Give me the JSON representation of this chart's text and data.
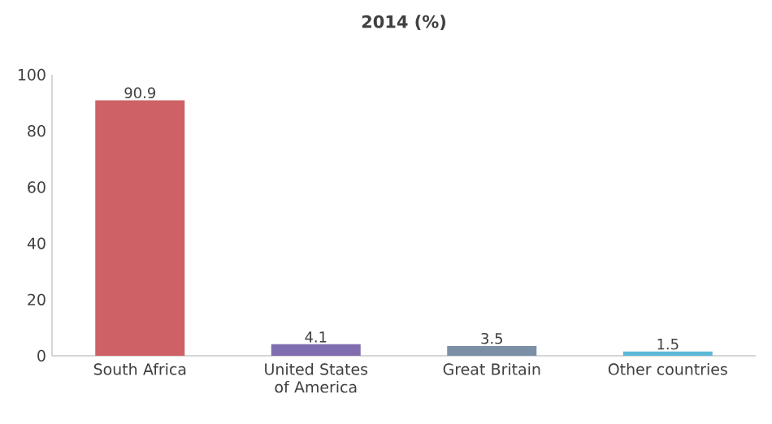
{
  "chart_data": {
    "type": "bar",
    "title": "2014 (%)",
    "categories": [
      "South Africa",
      "United States of America",
      "Great Britain",
      "Other countries"
    ],
    "values": [
      90.9,
      4.1,
      3.5,
      1.5
    ],
    "colors": [
      "#cd6165",
      "#7f6db0",
      "#7b8fa6",
      "#5bb8d6"
    ],
    "ylim": [
      0,
      100
    ],
    "yticks": [
      0,
      20,
      40,
      60,
      80,
      100
    ],
    "data_labels": true
  }
}
